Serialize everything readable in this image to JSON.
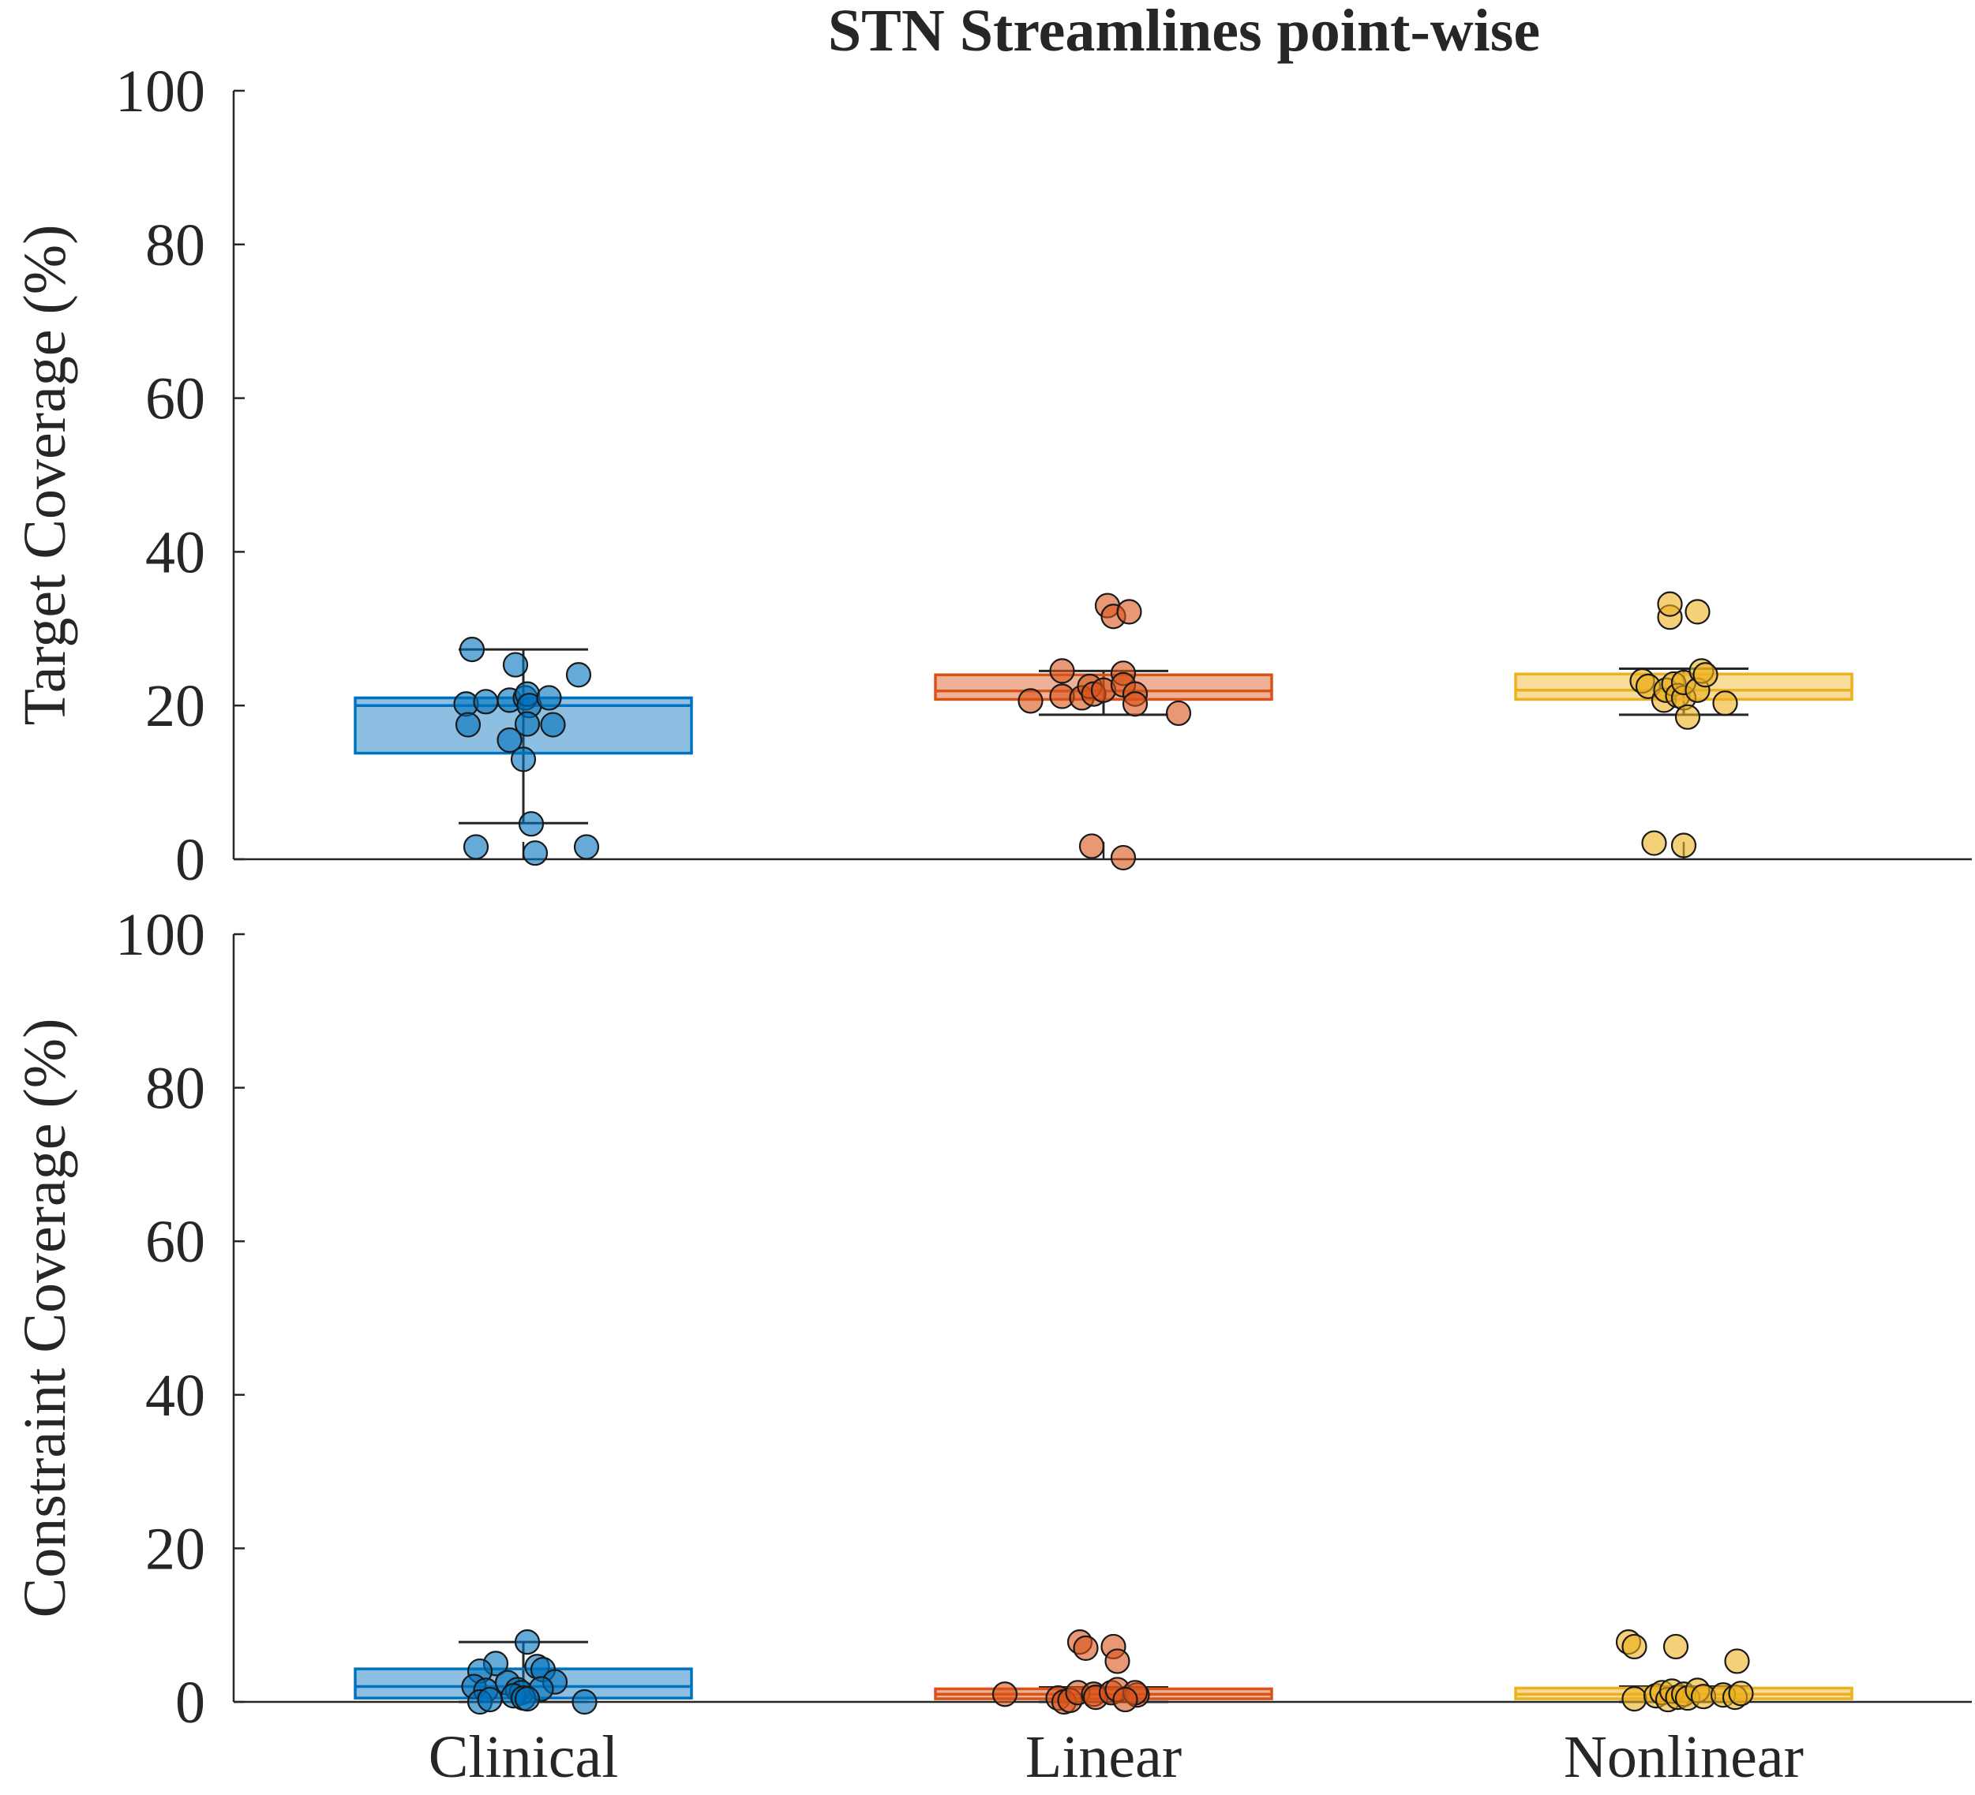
{
  "chart_data": {
    "type": "box",
    "title": "STN Streamlines point-wise",
    "categories": [
      "Clinical",
      "Linear",
      "Nonlinear"
    ],
    "colors": {
      "Clinical": "#0072BD",
      "Linear": "#D95319",
      "Nonlinear": "#EDB120"
    },
    "yticks": [
      "0",
      "20",
      "40",
      "60",
      "80",
      "100"
    ],
    "panels": [
      {
        "ylabel": "Target Coverage (%)",
        "ylim": [
          0,
          100
        ],
        "groups": [
          {
            "name": "Clinical",
            "box": {
              "whisker_low": 4.7,
              "q1": 13.8,
              "median": 20.0,
              "q3": 21.0,
              "whisker_high": 27.3
            },
            "points": [
              {
                "x": -0.26,
                "y": 27.3
              },
              {
                "x": -0.04,
                "y": 25.3
              },
              {
                "x": 0.28,
                "y": 24.0
              },
              {
                "x": -0.29,
                "y": 20.2
              },
              {
                "x": -0.19,
                "y": 20.5
              },
              {
                "x": -0.07,
                "y": 20.7
              },
              {
                "x": 0.01,
                "y": 21.0
              },
              {
                "x": 0.02,
                "y": 21.5
              },
              {
                "x": 0.03,
                "y": 20.0
              },
              {
                "x": 0.13,
                "y": 21.0
              },
              {
                "x": -0.28,
                "y": 17.5
              },
              {
                "x": 0.02,
                "y": 17.6
              },
              {
                "x": 0.15,
                "y": 17.5
              },
              {
                "x": -0.07,
                "y": 15.5
              },
              {
                "x": 0.0,
                "y": 13.0
              },
              {
                "x": 0.04,
                "y": 4.6
              },
              {
                "x": -0.24,
                "y": 1.6
              },
              {
                "x": 0.32,
                "y": 1.6
              },
              {
                "x": 0.06,
                "y": 0.8
              }
            ]
          },
          {
            "name": "Linear",
            "box": {
              "whisker_low": 18.8,
              "q1": 20.8,
              "median": 21.9,
              "q3": 24.0,
              "whisker_high": 24.5
            },
            "points": [
              {
                "x": 0.02,
                "y": 33.0
              },
              {
                "x": 0.05,
                "y": 31.6
              },
              {
                "x": 0.13,
                "y": 32.2
              },
              {
                "x": -0.21,
                "y": 24.5
              },
              {
                "x": 0.1,
                "y": 24.2
              },
              {
                "x": -0.37,
                "y": 20.6
              },
              {
                "x": -0.21,
                "y": 21.2
              },
              {
                "x": -0.11,
                "y": 21.0
              },
              {
                "x": -0.07,
                "y": 22.5
              },
              {
                "x": -0.05,
                "y": 21.5
              },
              {
                "x": 0.0,
                "y": 22.0
              },
              {
                "x": 0.1,
                "y": 22.7
              },
              {
                "x": 0.16,
                "y": 21.5
              },
              {
                "x": 0.16,
                "y": 20.2
              },
              {
                "x": 0.38,
                "y": 19.0
              },
              {
                "x": -0.06,
                "y": 1.7
              },
              {
                "x": 0.1,
                "y": 0.2
              }
            ]
          },
          {
            "name": "Nonlinear",
            "box": {
              "whisker_low": 18.8,
              "q1": 20.8,
              "median": 22.0,
              "q3": 24.1,
              "whisker_high": 24.8
            },
            "points": [
              {
                "x": -0.07,
                "y": 31.5
              },
              {
                "x": -0.07,
                "y": 33.2
              },
              {
                "x": 0.07,
                "y": 32.2
              },
              {
                "x": -0.21,
                "y": 23.2
              },
              {
                "x": -0.18,
                "y": 22.5
              },
              {
                "x": -0.1,
                "y": 20.7
              },
              {
                "x": -0.09,
                "y": 22.0
              },
              {
                "x": -0.05,
                "y": 22.8
              },
              {
                "x": -0.03,
                "y": 21.3
              },
              {
                "x": 0.0,
                "y": 21.0
              },
              {
                "x": 0.02,
                "y": 18.5
              },
              {
                "x": 0.0,
                "y": 23.0
              },
              {
                "x": 0.07,
                "y": 22.0
              },
              {
                "x": 0.09,
                "y": 24.5
              },
              {
                "x": 0.11,
                "y": 24.0
              },
              {
                "x": 0.21,
                "y": 20.3
              },
              {
                "x": -0.15,
                "y": 2.1
              },
              {
                "x": 0.0,
                "y": 1.8
              }
            ]
          }
        ]
      },
      {
        "ylabel": "Constraint Coverage (%)",
        "ylim": [
          0,
          100
        ],
        "groups": [
          {
            "name": "Clinical",
            "box": {
              "whisker_low": 0.0,
              "q1": 0.5,
              "median": 2.0,
              "q3": 4.3,
              "whisker_high": 7.8
            },
            "points": [
              {
                "x": 0.02,
                "y": 7.8
              },
              {
                "x": -0.14,
                "y": 5.0
              },
              {
                "x": -0.22,
                "y": 4.0
              },
              {
                "x": 0.07,
                "y": 4.6
              },
              {
                "x": 0.1,
                "y": 4.2
              },
              {
                "x": 0.16,
                "y": 2.6
              },
              {
                "x": -0.25,
                "y": 2.0
              },
              {
                "x": -0.19,
                "y": 1.5
              },
              {
                "x": -0.08,
                "y": 2.5
              },
              {
                "x": -0.03,
                "y": 1.6
              },
              {
                "x": -0.01,
                "y": 1.2
              },
              {
                "x": 0.09,
                "y": 1.7
              },
              {
                "x": -0.22,
                "y": 0.0
              },
              {
                "x": -0.17,
                "y": 0.3
              },
              {
                "x": -0.05,
                "y": 0.8
              },
              {
                "x": 0.0,
                "y": 0.5
              },
              {
                "x": 0.02,
                "y": 0.4
              },
              {
                "x": 0.31,
                "y": 0.0
              }
            ]
          },
          {
            "name": "Linear",
            "box": {
              "whisker_low": 0.0,
              "q1": 0.4,
              "median": 1.0,
              "q3": 1.7,
              "whisker_high": 1.9
            },
            "points": [
              {
                "x": -0.12,
                "y": 7.8
              },
              {
                "x": -0.09,
                "y": 7.0
              },
              {
                "x": 0.05,
                "y": 7.2
              },
              {
                "x": 0.07,
                "y": 5.3
              },
              {
                "x": -0.5,
                "y": 1.0
              },
              {
                "x": -0.23,
                "y": 0.5
              },
              {
                "x": -0.2,
                "y": 0.0
              },
              {
                "x": -0.17,
                "y": 0.2
              },
              {
                "x": -0.13,
                "y": 1.2
              },
              {
                "x": -0.05,
                "y": 1.0
              },
              {
                "x": -0.04,
                "y": 0.6
              },
              {
                "x": 0.04,
                "y": 1.2
              },
              {
                "x": 0.07,
                "y": 1.6
              },
              {
                "x": 0.17,
                "y": 0.9
              },
              {
                "x": 0.16,
                "y": 1.2
              },
              {
                "x": 0.11,
                "y": 0.3
              }
            ]
          },
          {
            "name": "Nonlinear",
            "box": {
              "whisker_low": 0.0,
              "q1": 0.4,
              "median": 1.0,
              "q3": 1.8,
              "whisker_high": 2.0
            },
            "points": [
              {
                "x": -0.28,
                "y": 7.8
              },
              {
                "x": -0.25,
                "y": 7.2
              },
              {
                "x": -0.04,
                "y": 7.2
              },
              {
                "x": 0.27,
                "y": 5.3
              },
              {
                "x": -0.25,
                "y": 0.4
              },
              {
                "x": -0.14,
                "y": 0.8
              },
              {
                "x": -0.11,
                "y": 1.2
              },
              {
                "x": -0.08,
                "y": 0.3
              },
              {
                "x": -0.06,
                "y": 1.4
              },
              {
                "x": -0.03,
                "y": 0.6
              },
              {
                "x": 0.0,
                "y": 1.0
              },
              {
                "x": 0.02,
                "y": 0.5
              },
              {
                "x": 0.07,
                "y": 1.5
              },
              {
                "x": 0.1,
                "y": 0.7
              },
              {
                "x": 0.2,
                "y": 0.9
              },
              {
                "x": 0.26,
                "y": 0.6
              },
              {
                "x": 0.29,
                "y": 1.1
              }
            ]
          }
        ]
      }
    ]
  }
}
